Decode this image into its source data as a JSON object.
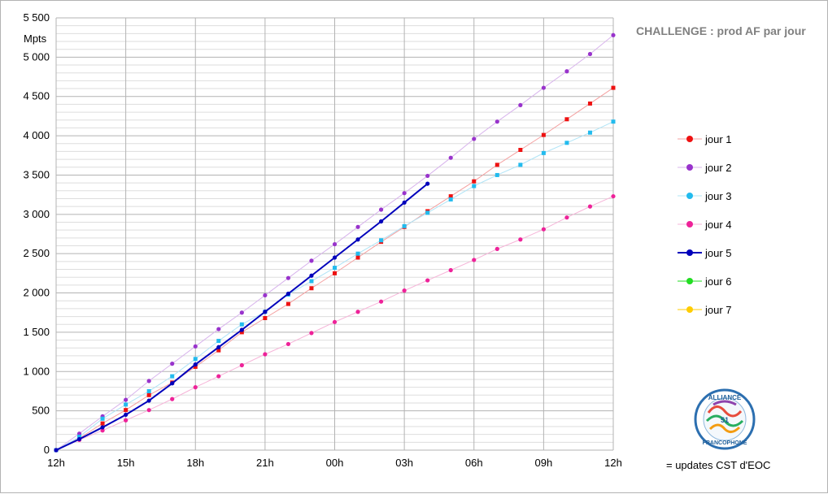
{
  "chart_data": {
    "type": "line",
    "title": "CHALLENGE : prod AF par jour",
    "ylabel": "Mpts",
    "xlabel": "",
    "ylim": [
      0,
      5500
    ],
    "xlim": [
      0,
      24
    ],
    "grid": true,
    "legend_position": "right",
    "x_ticks": [
      {
        "x": 0,
        "label": "12h"
      },
      {
        "x": 3,
        "label": "15h"
      },
      {
        "x": 6,
        "label": "18h"
      },
      {
        "x": 9,
        "label": "21h"
      },
      {
        "x": 12,
        "label": "00h"
      },
      {
        "x": 15,
        "label": "03h"
      },
      {
        "x": 18,
        "label": "06h"
      },
      {
        "x": 21,
        "label": "09h"
      },
      {
        "x": 24,
        "label": "12h"
      }
    ],
    "y_ticks": [
      {
        "y": 0,
        "label": "0"
      },
      {
        "y": 500,
        "label": "500"
      },
      {
        "y": 1000,
        "label": "1 000"
      },
      {
        "y": 1500,
        "label": "1 500"
      },
      {
        "y": 2000,
        "label": "2 000"
      },
      {
        "y": 2500,
        "label": "2 500"
      },
      {
        "y": 3000,
        "label": "3 000"
      },
      {
        "y": 3500,
        "label": "3 500"
      },
      {
        "y": 4000,
        "label": "4 000"
      },
      {
        "y": 4500,
        "label": "4 500"
      },
      {
        "y": 5000,
        "label": "5 000"
      },
      {
        "y": 5500,
        "label": "5 500"
      }
    ],
    "series": [
      {
        "name": "jour 1",
        "color": "#ee1111",
        "line_color": "#f4a0a0",
        "line_width": 1,
        "x": [
          0,
          1,
          2,
          3,
          4,
          5,
          6,
          7,
          8,
          9,
          10,
          11,
          12,
          13,
          14,
          15,
          16,
          17,
          18,
          19,
          20,
          21,
          22,
          23,
          24
        ],
        "values": [
          0,
          150,
          340,
          510,
          700,
          860,
          1060,
          1270,
          1500,
          1680,
          1860,
          2060,
          2250,
          2450,
          2650,
          2840,
          3040,
          3230,
          3420,
          3630,
          3820,
          4010,
          4210,
          4410,
          4610
        ]
      },
      {
        "name": "jour 2",
        "color": "#9933cc",
        "line_color": "#d8b4ec",
        "line_width": 1,
        "x": [
          0,
          1,
          2,
          3,
          4,
          5,
          6,
          7,
          8,
          9,
          10,
          11,
          12,
          13,
          14,
          15,
          16,
          17,
          18,
          19,
          20,
          21,
          22,
          23,
          24
        ],
        "values": [
          0,
          210,
          430,
          640,
          880,
          1100,
          1320,
          1540,
          1750,
          1970,
          2190,
          2410,
          2620,
          2840,
          3060,
          3270,
          3490,
          3720,
          3960,
          4180,
          4390,
          4610,
          4820,
          5040,
          5280
        ]
      },
      {
        "name": "jour 3",
        "color": "#22bbee",
        "line_color": "#b0e4f6",
        "line_width": 1,
        "x": [
          0,
          1,
          2,
          3,
          4,
          5,
          6,
          7,
          8,
          9,
          10,
          11,
          12,
          13,
          14,
          15,
          16,
          17,
          18,
          19,
          20,
          21,
          22,
          23,
          24
        ],
        "values": [
          0,
          170,
          400,
          580,
          750,
          940,
          1160,
          1390,
          1600,
          1760,
          1980,
          2150,
          2320,
          2500,
          2670,
          2850,
          3020,
          3190,
          3360,
          3500,
          3630,
          3780,
          3910,
          4040,
          4180
        ]
      },
      {
        "name": "jour 4",
        "color": "#ee2299",
        "line_color": "#f6b4d8",
        "line_width": 1,
        "x": [
          0,
          1,
          2,
          3,
          4,
          5,
          6,
          7,
          8,
          9,
          10,
          11,
          12,
          13,
          14,
          15,
          16,
          17,
          18,
          19,
          20,
          21,
          22,
          23,
          24
        ],
        "values": [
          0,
          130,
          250,
          380,
          510,
          650,
          800,
          940,
          1080,
          1220,
          1350,
          1490,
          1630,
          1760,
          1890,
          2030,
          2160,
          2290,
          2420,
          2560,
          2680,
          2810,
          2960,
          3100,
          3230
        ]
      },
      {
        "name": "jour 5",
        "color": "#0000bb",
        "line_color": "#0000bb",
        "line_width": 2,
        "x": [
          0,
          1,
          2,
          3,
          4,
          5,
          6,
          7,
          8,
          9,
          10,
          11,
          12,
          13,
          14,
          15,
          16
        ],
        "values": [
          0,
          140,
          290,
          450,
          630,
          850,
          1090,
          1310,
          1530,
          1760,
          1990,
          2220,
          2450,
          2680,
          2910,
          3150,
          3390
        ]
      },
      {
        "name": "jour 6",
        "color": "#22dd22",
        "line_color": "#22dd22",
        "line_width": 1,
        "x": [],
        "values": []
      },
      {
        "name": "jour 7",
        "color": "#ffcc00",
        "line_color": "#ffcc00",
        "line_width": 1,
        "x": [],
        "values": []
      }
    ],
    "annotations": [
      "= updates CST d'EOC"
    ]
  },
  "logo": {
    "top_text": "ALLIANCE",
    "bottom_text": "FRANCOPHONE",
    "center_text": "51"
  }
}
